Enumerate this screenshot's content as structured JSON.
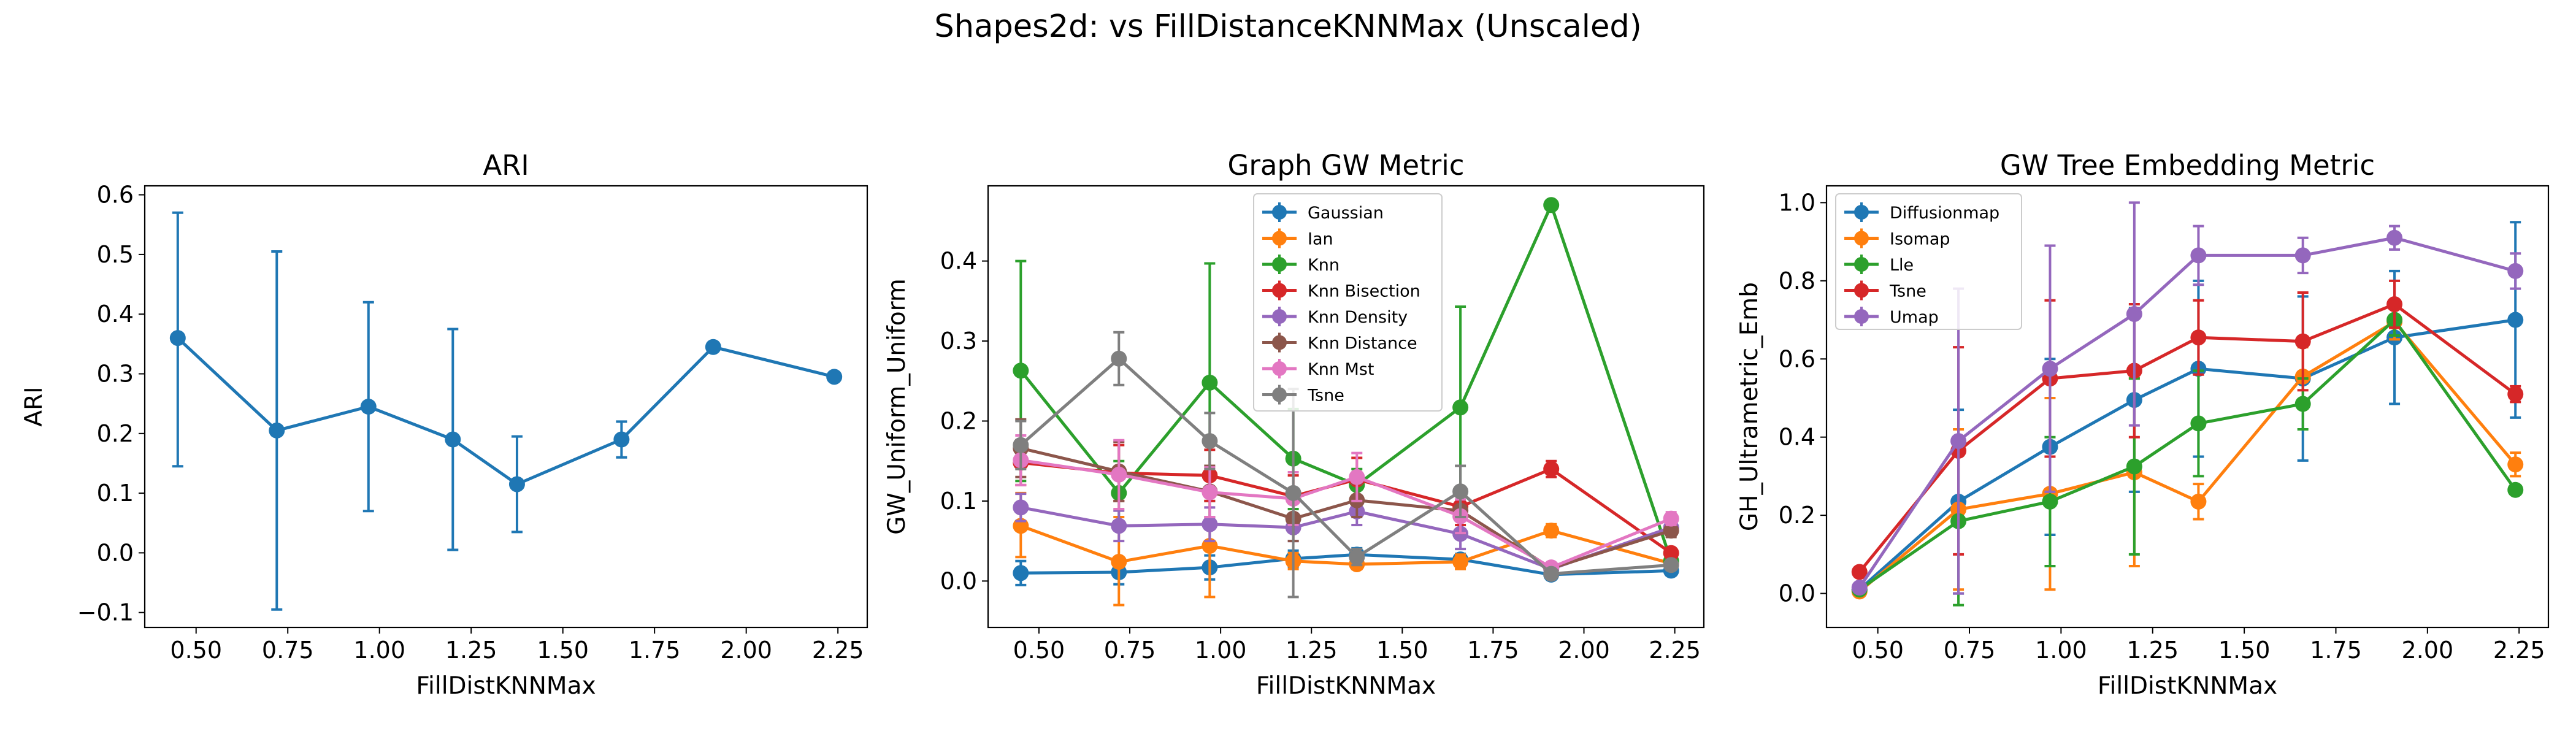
{
  "figure": {
    "suptitle": "Shapes2d: vs FillDistanceKNNMax (Unscaled)"
  },
  "chart_data": [
    {
      "type": "line",
      "title": "ARI",
      "xlabel": "FillDistKNNMax",
      "ylabel": "ARI",
      "xlim": [
        0.36,
        2.33
      ],
      "ylim": [
        -0.125,
        0.615
      ],
      "xticks": [
        0.5,
        0.75,
        1.0,
        1.25,
        1.5,
        1.75,
        2.0,
        2.25
      ],
      "xtick_labels": [
        "0.50",
        "0.75",
        "1.00",
        "1.25",
        "1.50",
        "1.75",
        "2.00",
        "2.25"
      ],
      "yticks": [
        -0.1,
        0.0,
        0.1,
        0.2,
        0.3,
        0.4,
        0.5,
        0.6
      ],
      "ytick_labels": [
        "−0.1",
        "0.0",
        "0.1",
        "0.2",
        "0.3",
        "0.4",
        "0.5",
        "0.6"
      ],
      "x": [
        0.45,
        0.72,
        0.97,
        1.2,
        1.375,
        1.66,
        1.91,
        2.24
      ],
      "series": [
        {
          "name": "",
          "color": "#1f77b4",
          "values": [
            0.36,
            0.205,
            0.245,
            0.19,
            0.115,
            0.19,
            0.345,
            0.295
          ],
          "err_low": [
            0.145,
            -0.095,
            0.07,
            0.005,
            0.035,
            0.16,
            0.345,
            0.295
          ],
          "err_high": [
            0.57,
            0.505,
            0.42,
            0.375,
            0.195,
            0.22,
            0.345,
            0.295
          ]
        }
      ],
      "legend": "none"
    },
    {
      "type": "line",
      "title": "Graph GW Metric",
      "xlabel": "FillDistKNNMax",
      "ylabel": "GW_Uniform_Uniform",
      "xlim": [
        0.36,
        2.33
      ],
      "ylim": [
        -0.058,
        0.494
      ],
      "xticks": [
        0.5,
        0.75,
        1.0,
        1.25,
        1.5,
        1.75,
        2.0,
        2.25
      ],
      "xtick_labels": [
        "0.50",
        "0.75",
        "1.00",
        "1.25",
        "1.50",
        "1.75",
        "2.00",
        "2.25"
      ],
      "yticks": [
        0.0,
        0.1,
        0.2,
        0.3,
        0.4
      ],
      "ytick_labels": [
        "0.0",
        "0.1",
        "0.2",
        "0.3",
        "0.4"
      ],
      "x": [
        0.45,
        0.72,
        0.97,
        1.2,
        1.375,
        1.66,
        1.91,
        2.24
      ],
      "legend": "top-center",
      "series": [
        {
          "name": "Gaussian",
          "color": "#1f77b4",
          "values": [
            0.01,
            0.011,
            0.017,
            0.028,
            0.033,
            0.027,
            0.008,
            0.013
          ],
          "err_low": [
            -0.005,
            -0.004,
            0.002,
            0.018,
            0.025,
            0.02,
            0.006,
            0.01
          ],
          "err_high": [
            0.025,
            0.026,
            0.032,
            0.038,
            0.041,
            0.034,
            0.01,
            0.016
          ]
        },
        {
          "name": "Ian",
          "color": "#ff7f0e",
          "values": [
            0.069,
            0.024,
            0.044,
            0.025,
            0.021,
            0.024,
            0.063,
            0.022
          ],
          "err_low": [
            0.03,
            -0.03,
            -0.02,
            0.015,
            0.015,
            0.015,
            0.055,
            0.015
          ],
          "err_high": [
            0.11,
            0.08,
            0.11,
            0.035,
            0.027,
            0.033,
            0.071,
            0.029
          ]
        },
        {
          "name": "Knn",
          "color": "#2ca02c",
          "values": [
            0.263,
            0.11,
            0.248,
            0.153,
            0.12,
            0.217,
            0.47,
            0.025
          ],
          "err_low": [
            0.125,
            0.07,
            0.1,
            0.09,
            0.1,
            0.09,
            0.47,
            0.025
          ],
          "err_high": [
            0.4,
            0.15,
            0.397,
            0.215,
            0.14,
            0.343,
            0.47,
            0.025
          ]
        },
        {
          "name": "Knn Bisection",
          "color": "#d62728",
          "values": [
            0.148,
            0.135,
            0.132,
            0.106,
            0.127,
            0.093,
            0.14,
            0.035
          ],
          "err_low": [
            0.12,
            0.1,
            0.1,
            0.08,
            0.1,
            0.07,
            0.13,
            0.03
          ],
          "err_high": [
            0.176,
            0.17,
            0.164,
            0.132,
            0.154,
            0.116,
            0.15,
            0.04
          ]
        },
        {
          "name": "Knn Density",
          "color": "#9467bd",
          "values": [
            0.092,
            0.069,
            0.071,
            0.067,
            0.087,
            0.059,
            0.015,
            0.067
          ],
          "err_low": [
            0.075,
            0.05,
            0.05,
            0.05,
            0.07,
            0.04,
            0.01,
            0.06
          ],
          "err_high": [
            0.109,
            0.088,
            0.092,
            0.084,
            0.104,
            0.078,
            0.02,
            0.074
          ]
        },
        {
          "name": "Knn Distance",
          "color": "#8c564b",
          "values": [
            0.166,
            0.137,
            0.112,
            0.078,
            0.101,
            0.088,
            0.016,
            0.063
          ],
          "err_low": [
            0.13,
            0.1,
            0.08,
            0.05,
            0.08,
            0.06,
            0.01,
            0.055
          ],
          "err_high": [
            0.202,
            0.174,
            0.144,
            0.106,
            0.122,
            0.116,
            0.022,
            0.071
          ]
        },
        {
          "name": "Knn Mst",
          "color": "#e377c2",
          "values": [
            0.151,
            0.133,
            0.111,
            0.103,
            0.13,
            0.081,
            0.017,
            0.078
          ],
          "err_low": [
            0.12,
            0.09,
            0.08,
            0.07,
            0.1,
            0.06,
            0.012,
            0.07
          ],
          "err_high": [
            0.182,
            0.176,
            0.142,
            0.136,
            0.16,
            0.102,
            0.022,
            0.086
          ]
        },
        {
          "name": "Tsne",
          "color": "#7f7f7f",
          "values": [
            0.17,
            0.278,
            0.175,
            0.11,
            0.03,
            0.112,
            0.009,
            0.02
          ],
          "err_low": [
            0.14,
            0.245,
            0.14,
            -0.02,
            0.02,
            0.08,
            0.006,
            0.015
          ],
          "err_high": [
            0.2,
            0.311,
            0.21,
            0.24,
            0.04,
            0.144,
            0.012,
            0.025
          ]
        }
      ]
    },
    {
      "type": "line",
      "title": "GW Tree Embedding Metric",
      "xlabel": "FillDistKNNMax",
      "ylabel": "GH_Ultrametric_Emb",
      "xlim": [
        0.36,
        2.33
      ],
      "ylim": [
        -0.087,
        1.043
      ],
      "xticks": [
        0.5,
        0.75,
        1.0,
        1.25,
        1.5,
        1.75,
        2.0,
        2.25
      ],
      "xtick_labels": [
        "0.50",
        "0.75",
        "1.00",
        "1.25",
        "1.50",
        "1.75",
        "2.00",
        "2.25"
      ],
      "yticks": [
        0.0,
        0.2,
        0.4,
        0.6,
        0.8,
        1.0
      ],
      "ytick_labels": [
        "0.0",
        "0.2",
        "0.4",
        "0.6",
        "0.8",
        "1.0"
      ],
      "x": [
        0.45,
        0.72,
        0.97,
        1.2,
        1.375,
        1.66,
        1.91,
        2.24
      ],
      "legend": "top-left",
      "series": [
        {
          "name": "Diffusionmap",
          "color": "#1f77b4",
          "values": [
            0.01,
            0.235,
            0.375,
            0.495,
            0.575,
            0.55,
            0.655,
            0.7
          ],
          "err_low": [
            0.0,
            0.0,
            0.15,
            0.26,
            0.35,
            0.34,
            0.485,
            0.45
          ],
          "err_high": [
            0.02,
            0.47,
            0.6,
            0.73,
            0.8,
            0.76,
            0.825,
            0.95
          ]
        },
        {
          "name": "Isomap",
          "color": "#ff7f0e",
          "values": [
            0.005,
            0.215,
            0.255,
            0.31,
            0.235,
            0.555,
            0.695,
            0.33
          ],
          "err_low": [
            0.0,
            0.01,
            0.01,
            0.07,
            0.19,
            0.48,
            0.65,
            0.3
          ],
          "err_high": [
            0.01,
            0.42,
            0.5,
            0.55,
            0.28,
            0.63,
            0.74,
            0.36
          ]
        },
        {
          "name": "Lle",
          "color": "#2ca02c",
          "values": [
            0.01,
            0.185,
            0.235,
            0.325,
            0.435,
            0.485,
            0.7,
            0.265
          ],
          "err_low": [
            0.0,
            -0.03,
            0.07,
            0.1,
            0.3,
            0.42,
            0.66,
            0.265
          ],
          "err_high": [
            0.02,
            0.4,
            0.4,
            0.55,
            0.57,
            0.55,
            0.74,
            0.265
          ]
        },
        {
          "name": "Tsne",
          "color": "#d62728",
          "values": [
            0.055,
            0.365,
            0.55,
            0.57,
            0.655,
            0.645,
            0.74,
            0.51
          ],
          "err_low": [
            0.05,
            0.1,
            0.35,
            0.4,
            0.56,
            0.52,
            0.68,
            0.49
          ],
          "err_high": [
            0.06,
            0.63,
            0.75,
            0.74,
            0.75,
            0.77,
            0.8,
            0.53
          ]
        },
        {
          "name": "Umap",
          "color": "#9467bd",
          "values": [
            0.015,
            0.39,
            0.575,
            0.715,
            0.865,
            0.865,
            0.91,
            0.825
          ],
          "err_low": [
            0.01,
            0.0,
            0.26,
            0.43,
            0.79,
            0.82,
            0.88,
            0.78
          ],
          "err_high": [
            0.02,
            0.78,
            0.89,
            1.0,
            0.94,
            0.91,
            0.94,
            0.87
          ]
        }
      ]
    }
  ]
}
